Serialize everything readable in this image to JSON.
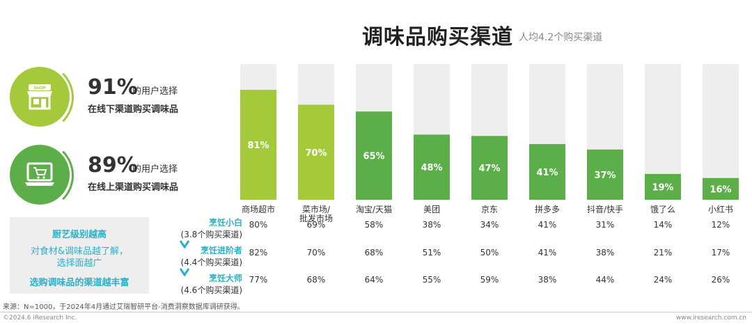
{
  "header": {
    "title": "调味品购买渠道",
    "subtitle": "人均4.2个购买渠道"
  },
  "stats": [
    {
      "pct": "91%",
      "tail": "的用户选择",
      "desc": "在线下渠道购买调味品",
      "icon": "shop-icon",
      "shop_text": "SHOP",
      "color": "#a4c93a"
    },
    {
      "pct": "89%",
      "tail": "的用户选择",
      "desc": "在线上渠道购买调味品",
      "icon": "laptop-cart-icon",
      "color": "#5cae48"
    }
  ],
  "info_box": {
    "line1": "厨艺级别越高",
    "line2a": "对食材&调味品越了解，",
    "line2b": "选择面越广",
    "line3": "选购调味品的渠道越丰富"
  },
  "segments": [
    {
      "name": "烹饪小白",
      "count": "(3.8个购买渠道)"
    },
    {
      "name": "烹饪进阶者",
      "count": "(4.4个购买渠道)"
    },
    {
      "name": "烹饪大师",
      "count": "(4.6个购买渠道)"
    }
  ],
  "chart_data": {
    "type": "bar",
    "categories": [
      "商场超市",
      "菜市场/\n批发市场",
      "淘宝/天猫",
      "美团",
      "京东",
      "拼多多",
      "抖音/快手",
      "饿了么",
      "小红书"
    ],
    "values": [
      81,
      70,
      65,
      48,
      47,
      41,
      37,
      19,
      16
    ],
    "value_labels": [
      "81%",
      "70%",
      "65%",
      "48%",
      "47%",
      "41%",
      "37%",
      "19%",
      "16%"
    ],
    "ylim": [
      0,
      100
    ],
    "bar_colors": [
      "#a4c93a",
      "#a4c93a",
      "#5cae48",
      "#5cae48",
      "#5cae48",
      "#5cae48",
      "#5cae48",
      "#5cae48",
      "#5cae48"
    ],
    "track_color": "#eeeeee",
    "table": [
      [
        "80%",
        "69%",
        "58%",
        "38%",
        "34%",
        "41%",
        "31%",
        "14%",
        "12%"
      ],
      [
        "82%",
        "70%",
        "68%",
        "51%",
        "50%",
        "41%",
        "38%",
        "21%",
        "17%"
      ],
      [
        "77%",
        "68%",
        "64%",
        "55%",
        "59%",
        "38%",
        "44%",
        "24%",
        "26%"
      ]
    ]
  },
  "footer": {
    "note": "来源：N=1000，于2024年4月通过艾瑞智研平台-消费洞察数据库调研获得。",
    "copyright": "©2024.6 iResearch Inc.",
    "site": "www.iresearch.com.cn"
  }
}
